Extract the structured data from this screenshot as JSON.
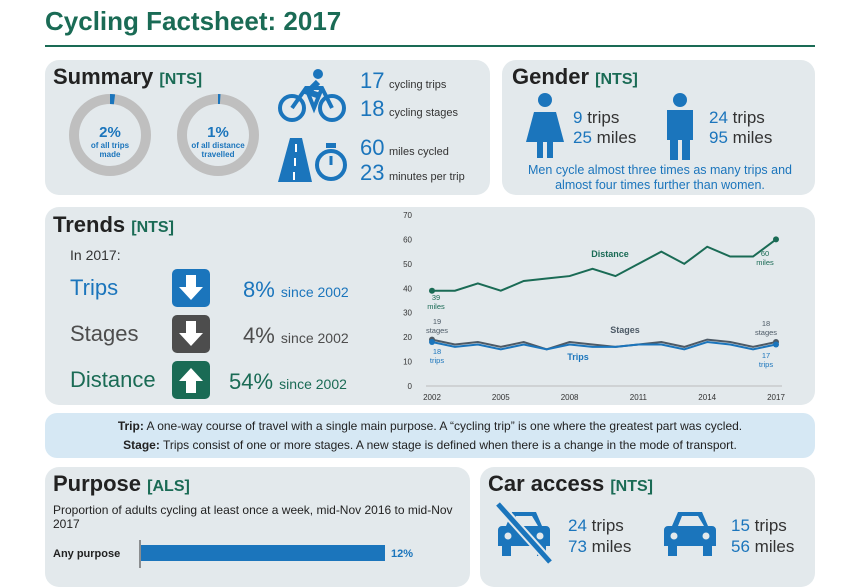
{
  "header": {
    "title": "Cycling Factsheet: 2017"
  },
  "summary": {
    "title": "Summary",
    "source": "[NTS]",
    "donuts": {
      "scale": [
        0,
        100
      ],
      "color": "#1b75bc",
      "track": "#bfbfbf",
      "items": [
        {
          "value": 2,
          "label": "2%",
          "caption": "of all trips made"
        },
        {
          "value": 1,
          "label": "1%",
          "caption": "of all distance travelled"
        }
      ]
    },
    "stats": [
      {
        "value": 17,
        "unit": "cycling trips"
      },
      {
        "value": 18,
        "unit": "cycling stages"
      },
      {
        "value": 60,
        "unit": "miles cycled"
      },
      {
        "value": 23,
        "unit": "minutes per trip"
      }
    ]
  },
  "gender": {
    "title": "Gender",
    "source": "[NTS]",
    "trips_unit": "trips",
    "miles_unit": "miles",
    "groups": [
      {
        "trips": 9,
        "miles": 25
      },
      {
        "trips": 24,
        "miles": 95
      }
    ],
    "note": "Men cycle almost three times as many trips and almost four times further than women."
  },
  "trends": {
    "title": "Trends",
    "source": "[NTS]",
    "intro": "In 2017:",
    "rows": [
      {
        "name": "Trips",
        "change": "8%",
        "since": "since 2002",
        "direction": "down",
        "color": "#1b75bc"
      },
      {
        "name": "Stages",
        "change": "4%",
        "since": "since 2002",
        "direction": "down",
        "color": "#4d4d4d"
      },
      {
        "name": "Distance",
        "change": "54%",
        "since": "since 2002",
        "direction": "up",
        "color": "#1a6b55"
      }
    ],
    "chart": {
      "type": "line",
      "x": [
        2002,
        2003,
        2004,
        2005,
        2006,
        2007,
        2008,
        2009,
        2010,
        2011,
        2012,
        2013,
        2014,
        2015,
        2016,
        2017
      ],
      "xlim": [
        2002,
        2017
      ],
      "xticks": [
        2002,
        2005,
        2008,
        2011,
        2014,
        2017
      ],
      "ylim": [
        0,
        70
      ],
      "yticks": [
        0,
        10,
        20,
        30,
        40,
        50,
        60,
        70
      ],
      "series": [
        {
          "name": "Distance",
          "color": "#1a6b55",
          "values": [
            39,
            39,
            42,
            39,
            43,
            44,
            45,
            48,
            45,
            50,
            55,
            50,
            57,
            53,
            53,
            60
          ],
          "start_label": {
            "value": 39,
            "unit": "miles"
          },
          "end_label": {
            "value": 60,
            "unit": "miles"
          }
        },
        {
          "name": "Stages",
          "color": "#4d5a66",
          "values": [
            19,
            17,
            18,
            16,
            18,
            15,
            18,
            17,
            16,
            17,
            18,
            16,
            19,
            18,
            16,
            18
          ],
          "start_label": {
            "value": 19,
            "unit": "stages"
          },
          "end_label": {
            "value": 18,
            "unit": "stages"
          }
        },
        {
          "name": "Trips",
          "color": "#1b75bc",
          "values": [
            18,
            16,
            17,
            15,
            17,
            15,
            17,
            16,
            16,
            17,
            17,
            15,
            18,
            17,
            15,
            17
          ],
          "start_label": {
            "value": 18,
            "unit": "trips"
          },
          "end_label": {
            "value": 17,
            "unit": "trips"
          }
        }
      ]
    }
  },
  "definitions": [
    {
      "term": "Trip:",
      "text": "A one-way course of travel with a single main purpose. A “cycling trip” is one where the greatest part was cycled."
    },
    {
      "term": "Stage:",
      "text": "Trips consist of one or more stages. A new stage is defined when there is a change in the mode of transport."
    }
  ],
  "purpose": {
    "title": "Purpose",
    "source": "[ALS]",
    "description": "Proportion of adults cycling at least once a week, mid-Nov 2016 to mid-Nov 2017",
    "xlim": [
      0,
      15
    ],
    "bars": [
      {
        "category": "Any purpose",
        "value": 12,
        "value_label": "12%",
        "color": "#1b75bc"
      }
    ]
  },
  "car_access": {
    "title": "Car access",
    "source": "[NTS]",
    "trips_unit": "trips",
    "miles_unit": "miles",
    "groups": [
      {
        "trips": 24,
        "miles": 73,
        "has_car": false
      },
      {
        "trips": 15,
        "miles": 56,
        "has_car": true
      }
    ]
  }
}
